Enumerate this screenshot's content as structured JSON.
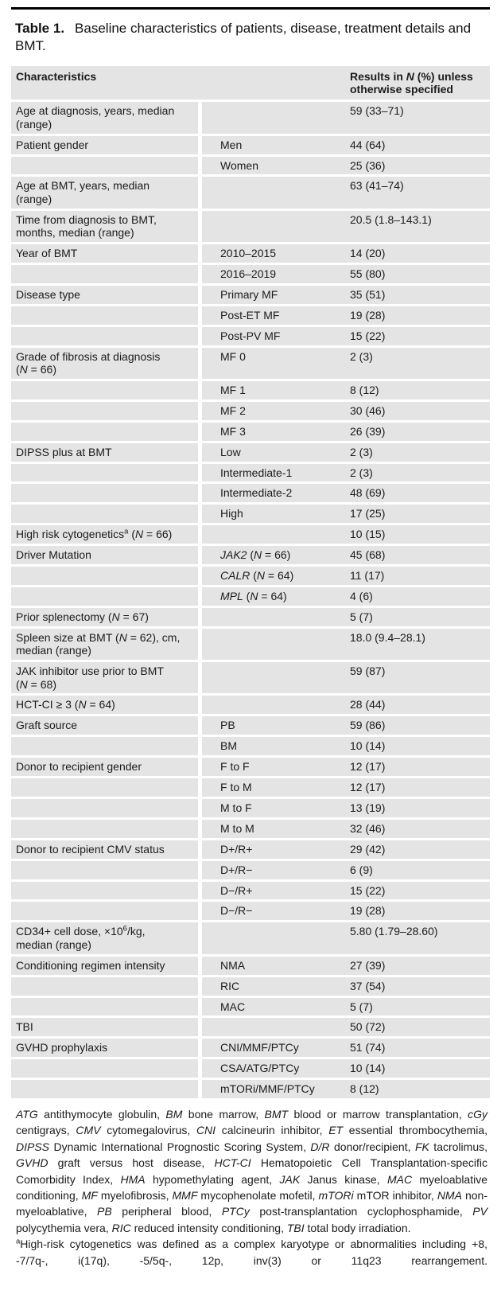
{
  "title": {
    "label": "Table 1.",
    "text": "Baseline characteristics of patients, disease, treatment details and BMT."
  },
  "table": {
    "header": {
      "characteristics": "Characteristics",
      "results": "Results in *N* (%) unless\notherwise specified"
    },
    "rows": [
      {
        "c1": "Age at diagnosis, years, median\n(range)",
        "c2": "",
        "c3": "59 (33–71)"
      },
      {
        "c1": "Patient gender",
        "c2": "Men",
        "c3": "44 (64)"
      },
      {
        "c1": "",
        "c2": "Women",
        "c3": "25 (36)"
      },
      {
        "c1": "Age at BMT, years, median\n(range)",
        "c2": "",
        "c3": "63 (41–74)"
      },
      {
        "c1": "Time from diagnosis to BMT,\nmonths, median (range)",
        "c2": "",
        "c3": "20.5 (1.8–143.1)"
      },
      {
        "c1": "Year of BMT",
        "c2": "2010–2015",
        "c3": "14 (20)"
      },
      {
        "c1": "",
        "c2": "2016–2019",
        "c3": "55 (80)"
      },
      {
        "c1": "Disease type",
        "c2": "Primary MF",
        "c3": "35 (51)"
      },
      {
        "c1": "",
        "c2": "Post-ET MF",
        "c3": "19 (28)"
      },
      {
        "c1": "",
        "c2": "Post-PV MF",
        "c3": "15 (22)"
      },
      {
        "c1": "Grade of fibrosis at diagnosis\n(*N* = 66)",
        "c2": "MF 0",
        "c3": "2 (3)"
      },
      {
        "c1": "",
        "c2": "MF 1",
        "c3": "8 (12)"
      },
      {
        "c1": "",
        "c2": "MF 2",
        "c3": "30 (46)"
      },
      {
        "c1": "",
        "c2": "MF 3",
        "c3": "26 (39)"
      },
      {
        "c1": "DIPSS plus at BMT",
        "c2": "Low",
        "c3": "2 (3)"
      },
      {
        "c1": "",
        "c2": "Intermediate-1",
        "c3": "2 (3)"
      },
      {
        "c1": "",
        "c2": "Intermediate-2",
        "c3": "48 (69)"
      },
      {
        "c1": "",
        "c2": "High",
        "c3": "17 (25)"
      },
      {
        "c1": "High risk cytogenetics^a^ (*N* = 66)",
        "c2": "",
        "c3": "10 (15)"
      },
      {
        "c1": "Driver Mutation",
        "c2": "*JAK2* (*N* = 66)",
        "c3": "45 (68)"
      },
      {
        "c1": "",
        "c2": "*CALR* (*N* = 64)",
        "c3": "11 (17)"
      },
      {
        "c1": "",
        "c2": "*MPL* (*N* = 64)",
        "c3": "4 (6)"
      },
      {
        "c1": "Prior splenectomy (*N* = 67)",
        "c2": "",
        "c3": "5 (7)"
      },
      {
        "c1": "Spleen size at BMT (*N* = 62), cm,\nmedian (range)",
        "c2": "",
        "c3": "18.0 (9.4–28.1)"
      },
      {
        "c1": "JAK inhibitor use prior to BMT\n(*N* = 68)",
        "c2": "",
        "c3": "59 (87)"
      },
      {
        "c1": "HCT-CI ≥ 3 (*N* = 64)",
        "c2": "",
        "c3": "28 (44)"
      },
      {
        "c1": "Graft source",
        "c2": "PB",
        "c3": "59 (86)"
      },
      {
        "c1": "",
        "c2": "BM",
        "c3": "10 (14)"
      },
      {
        "c1": "Donor to recipient gender",
        "c2": "F to F",
        "c3": "12 (17)"
      },
      {
        "c1": "",
        "c2": "F to M",
        "c3": "12 (17)"
      },
      {
        "c1": "",
        "c2": "M to F",
        "c3": "13 (19)"
      },
      {
        "c1": "",
        "c2": "M to M",
        "c3": "32 (46)"
      },
      {
        "c1": "Donor to recipient CMV status",
        "c2": "D+/R+",
        "c3": "29 (42)"
      },
      {
        "c1": "",
        "c2": "D+/R−",
        "c3": "6 (9)"
      },
      {
        "c1": "",
        "c2": "D−/R+",
        "c3": "15 (22)"
      },
      {
        "c1": "",
        "c2": "D−/R−",
        "c3": "19 (28)"
      },
      {
        "c1": "CD34+ cell dose, ×10^6^/kg,\nmedian (range)",
        "c2": "",
        "c3": "5.80 (1.79–28.60)"
      },
      {
        "c1": "Conditioning regimen intensity",
        "c2": "NMA",
        "c3": "27 (39)"
      },
      {
        "c1": "",
        "c2": "RIC",
        "c3": "37 (54)"
      },
      {
        "c1": "",
        "c2": "MAC",
        "c3": "5 (7)"
      },
      {
        "c1": "TBI",
        "c2": "",
        "c3": "50 (72)"
      },
      {
        "c1": "GVHD prophylaxis",
        "c2": "CNI/MMF/PTCy",
        "c3": "51 (74)"
      },
      {
        "c1": "",
        "c2": "CSA/ATG/PTCy",
        "c3": "10 (14)"
      },
      {
        "c1": "",
        "c2": "mTORi/MMF/PTCy",
        "c3": "8 (12)"
      }
    ]
  },
  "footnotes": {
    "abbreviations": "*ATG* antithymocyte globulin, *BM* bone marrow, *BMT* blood or marrow transplantation, *cGy* centigrays, *CMV* cytomegalovirus, *CNI* calcineurin inhibitor, *ET* essential thrombocythemia, *DIPSS* Dynamic International Prognostic Scoring System, *D/R* donor/recipient, *FK* tacrolimus, *GVHD* graft versus host disease, *HCT-CI* Hematopoietic Cell Transplantation-specific Comorbidity Index, *HMA* hypomethylating agent, *JAK* Janus kinase, *MAC* myeloablative conditioning, *MF* myelofibrosis, *MMF* mycophenolate mofetil, *mTORi* mTOR inhibitor, *NMA* non-myeloablative, *PB* peripheral blood, *PTCy* post-transplantation cyclophosphamide, *PV* polycythemia vera, *RIC* reduced intensity conditioning, *TBI* total body irradiation.",
    "cytogenetics": "^a^High-risk cytogenetics was defined as a complex karyotype or abnormalities including +8, -7/7q-, i(17q), -5/5q-, 12p, inv(3) or 11q23 rearrangement."
  },
  "colors": {
    "row_background": "#e4e4e4",
    "rule": "#000000",
    "text": "#1b1b1b"
  }
}
